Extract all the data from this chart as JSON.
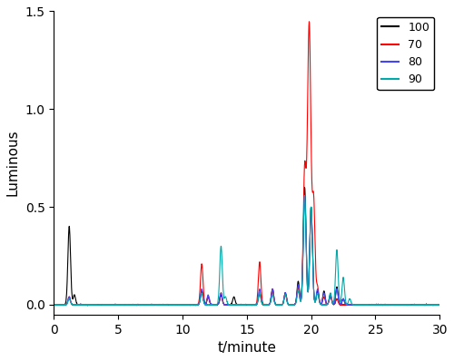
{
  "xlabel": "t/minute",
  "ylabel": "Luminous",
  "xlim": [
    0,
    30
  ],
  "ylim": [
    -0.05,
    1.5
  ],
  "yticks": [
    0.0,
    0.5,
    1.0,
    1.5
  ],
  "xticks": [
    0,
    5,
    10,
    15,
    20,
    25,
    30
  ],
  "legend_labels": [
    "100",
    "70",
    "80",
    "90"
  ],
  "legend_colors": [
    "black",
    "#FF0000",
    "#4444FF",
    "#00AAAA"
  ],
  "line_width": 0.8,
  "figsize": [
    5.0,
    3.98
  ],
  "dpi": 100,
  "series": {
    "black_100": {
      "color": "black",
      "peaks": [
        [
          1.2,
          0.4
        ],
        [
          1.6,
          0.05
        ],
        [
          11.5,
          0.07
        ],
        [
          12.0,
          0.04
        ],
        [
          13.0,
          0.05
        ],
        [
          14.0,
          0.04
        ],
        [
          16.0,
          0.06
        ],
        [
          17.0,
          0.08
        ],
        [
          18.0,
          0.06
        ],
        [
          19.0,
          0.12
        ],
        [
          19.5,
          0.6
        ],
        [
          20.0,
          0.5
        ],
        [
          20.5,
          0.07
        ],
        [
          21.0,
          0.07
        ],
        [
          21.5,
          0.05
        ],
        [
          22.0,
          0.09
        ],
        [
          22.5,
          0.03
        ]
      ]
    },
    "red_70": {
      "color": "#FF0000",
      "peaks": [
        [
          1.2,
          0.04
        ],
        [
          11.5,
          0.21
        ],
        [
          12.0,
          0.04
        ],
        [
          13.0,
          0.06
        ],
        [
          16.0,
          0.22
        ],
        [
          17.0,
          0.08
        ],
        [
          18.0,
          0.06
        ],
        [
          19.0,
          0.09
        ],
        [
          19.5,
          0.68
        ],
        [
          19.85,
          1.44
        ],
        [
          20.2,
          0.52
        ],
        [
          20.5,
          0.09
        ],
        [
          21.0,
          0.04
        ],
        [
          21.5,
          0.04
        ],
        [
          22.0,
          0.03
        ]
      ]
    },
    "blue_80": {
      "color": "#4444FF",
      "peaks": [
        [
          1.2,
          0.04
        ],
        [
          11.5,
          0.08
        ],
        [
          12.0,
          0.05
        ],
        [
          13.0,
          0.06
        ],
        [
          16.0,
          0.08
        ],
        [
          17.0,
          0.08
        ],
        [
          18.0,
          0.06
        ],
        [
          19.0,
          0.1
        ],
        [
          19.5,
          0.56
        ],
        [
          20.0,
          0.5
        ],
        [
          20.5,
          0.08
        ],
        [
          21.0,
          0.06
        ],
        [
          21.5,
          0.05
        ],
        [
          22.0,
          0.08
        ],
        [
          22.5,
          0.03
        ]
      ]
    },
    "teal_90": {
      "color": "#00AAAA",
      "peaks": [
        [
          1.2,
          0.03
        ],
        [
          11.5,
          0.06
        ],
        [
          13.0,
          0.3
        ],
        [
          13.35,
          0.04
        ],
        [
          16.0,
          0.06
        ],
        [
          17.0,
          0.05
        ],
        [
          18.0,
          0.05
        ],
        [
          19.0,
          0.07
        ],
        [
          19.5,
          0.56
        ],
        [
          20.0,
          0.5
        ],
        [
          20.5,
          0.06
        ],
        [
          21.5,
          0.06
        ],
        [
          22.0,
          0.28
        ],
        [
          22.5,
          0.14
        ],
        [
          23.0,
          0.03
        ]
      ]
    }
  }
}
